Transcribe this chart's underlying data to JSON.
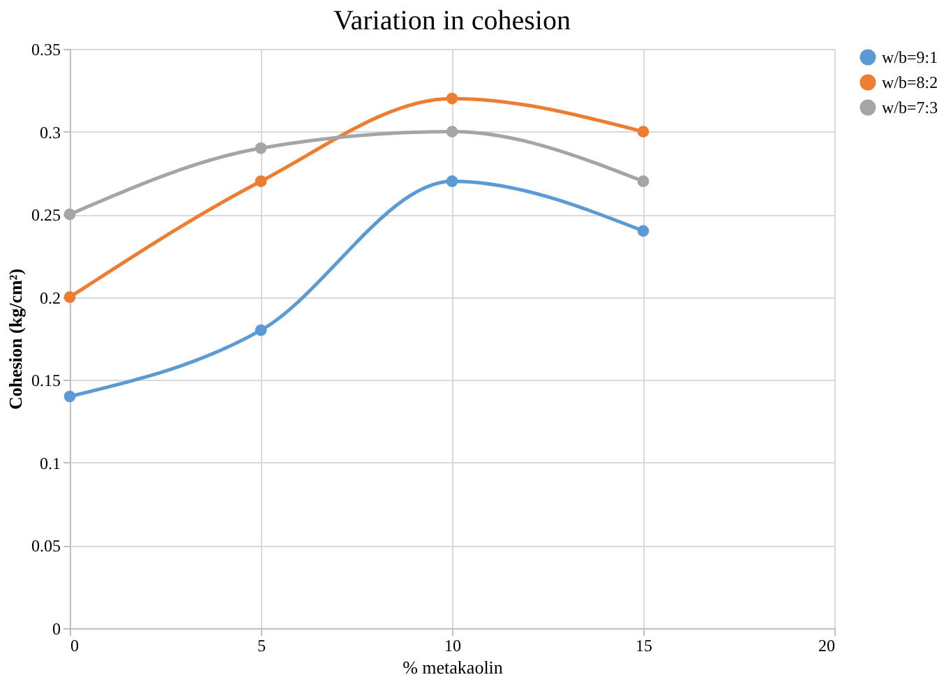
{
  "chart_data": {
    "type": "line",
    "title": "Variation in cohesion",
    "xlabel": "% metakaolin",
    "ylabel": "Cohesion (kg/cm²)",
    "x": [
      0,
      5,
      10,
      15
    ],
    "series": [
      {
        "name": "w/b=9:1",
        "color": "#5b9bd5",
        "values": [
          0.14,
          0.18,
          0.27,
          0.24
        ]
      },
      {
        "name": "w/b=8:2",
        "color": "#ed7d31",
        "values": [
          0.2,
          0.27,
          0.32,
          0.3
        ]
      },
      {
        "name": "w/b=7:3",
        "color": "#a5a5a5",
        "values": [
          0.25,
          0.29,
          0.3,
          0.27
        ]
      }
    ],
    "xlim": [
      0,
      20
    ],
    "xticks": [
      0,
      5,
      10,
      15,
      20
    ],
    "ylim": [
      0,
      0.35
    ],
    "yticks": [
      0,
      0.05,
      0.1,
      0.15,
      0.2,
      0.25,
      0.3,
      0.35
    ],
    "grid": true,
    "legend": "right",
    "marker": "circle",
    "line_style": "solid"
  }
}
